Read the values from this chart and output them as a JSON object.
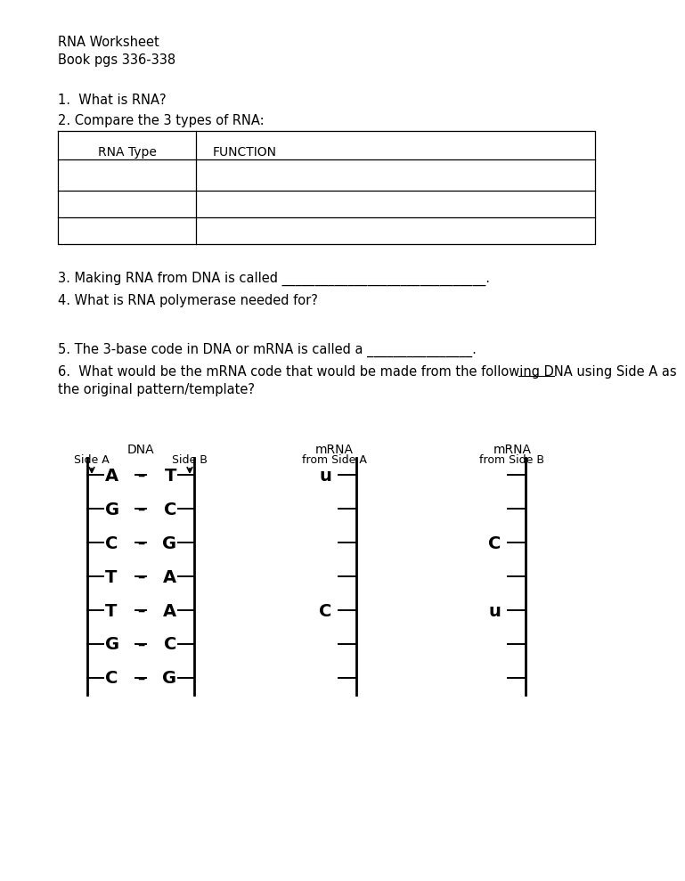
{
  "title_line1": "RNA Worksheet",
  "title_line2": "Book pgs 336-338",
  "q1": "1.  What is RNA?",
  "q2": "2. Compare the 3 types of RNA:",
  "table_headers": [
    "RNA Type",
    "FUNCTION"
  ],
  "q3": "3. Making RNA from DNA is called _______________________________.",
  "q4": "4. What is RNA polymerase needed for?",
  "q5": "5. The 3-base code in DNA or mRNA is called a ________________.",
  "q6_line1": "6.  What would be the mRNA code that would be made from the following DNA using Side A as",
  "q6_line2": "the original pattern/template?",
  "dna_label": "DNA",
  "dna_side_a": "Side A",
  "dna_side_b": "Side B",
  "mrna_label1": "mRNA",
  "mrna_from_a": "from Side A",
  "mrna_label2": "mRNA",
  "mrna_from_b": "from Side B",
  "dna_pairs": [
    [
      "A",
      "T"
    ],
    [
      "G",
      "C"
    ],
    [
      "C",
      "G"
    ],
    [
      "T",
      "A"
    ],
    [
      "T",
      "A"
    ],
    [
      "G",
      "C"
    ],
    [
      "C",
      "G"
    ]
  ],
  "mrna_a_labels": [
    "u",
    "",
    "",
    "",
    "C",
    "",
    ""
  ],
  "mrna_b_labels": [
    "",
    "",
    "C",
    "",
    "u",
    "",
    ""
  ],
  "bg_color": "#ffffff",
  "text_color": "#000000"
}
